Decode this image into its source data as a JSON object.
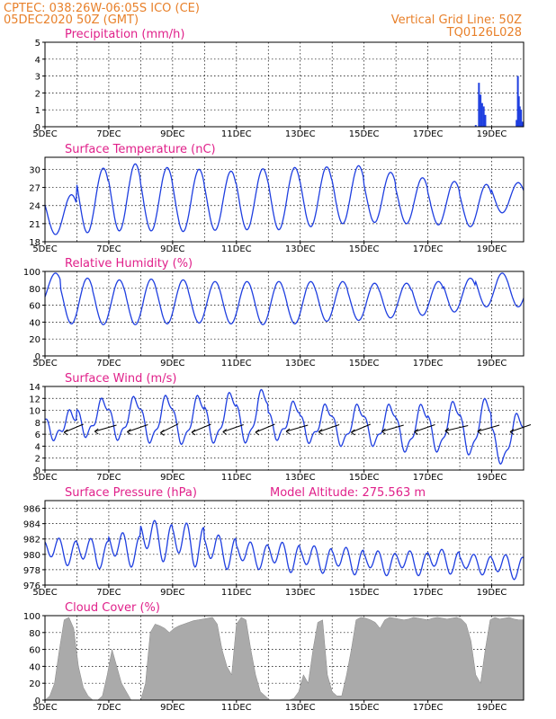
{
  "header": {
    "line1": "CPTEC:   038:26W-06:05S  ICO (CE)",
    "line2": "05DEC2020 50Z (GMT)",
    "right1": "Vertical Grid Line: 50Z",
    "right2": "TQ0126L028"
  },
  "colors": {
    "header": "#e8802a",
    "title": "#e0208a",
    "series": "#1f3fe0",
    "cloud": "#aaaaaa"
  },
  "chart_data": [
    {
      "type": "bar",
      "title": "Precipitation (mm/h)",
      "ylim": [
        0,
        5
      ],
      "yticks": [
        0,
        1,
        2,
        3,
        4,
        5
      ],
      "xlim": [
        5,
        20
      ],
      "xtick_labels": [
        "5DEC",
        "7DEC",
        "9DEC",
        "11DEC",
        "13DEC",
        "15DEC",
        "17DEC",
        "19DEC"
      ],
      "x": [
        5.5,
        8.0,
        10.5,
        13.5,
        16.0,
        18.5,
        18.6,
        18.65,
        18.7,
        18.75,
        18.8,
        19.78,
        19.82,
        19.85,
        19.88,
        19.92,
        19.96
      ],
      "y": [
        0.02,
        0.02,
        0.02,
        0.02,
        0.03,
        0.1,
        2.6,
        1.9,
        1.4,
        1.2,
        0.7,
        0.4,
        3.0,
        1.8,
        1.2,
        1.0,
        0.3
      ]
    },
    {
      "type": "line",
      "title": "Surface Temperature (nC)",
      "ylim": [
        18,
        32
      ],
      "yticks": [
        18,
        21,
        24,
        27,
        30
      ],
      "xlim": [
        5,
        20
      ],
      "xtick_labels": [
        "5DEC",
        "7DEC",
        "9DEC",
        "11DEC",
        "13DEC",
        "15DEC",
        "17DEC",
        "19DEC"
      ],
      "daily": {
        "max": [
          25.8,
          30.2,
          30.9,
          30.3,
          30.0,
          29.7,
          30.1,
          30.3,
          30.4,
          30.6,
          29.5,
          28.6,
          28.0,
          27.5,
          27.8
        ],
        "min": [
          19.2,
          19.5,
          19.8,
          19.8,
          19.7,
          19.9,
          20.0,
          20.0,
          20.5,
          21.0,
          21.2,
          21.0,
          20.8,
          20.5,
          22.8
        ]
      }
    },
    {
      "type": "line",
      "title": "Relative Humidity (%)",
      "ylim": [
        0,
        100
      ],
      "yticks": [
        0,
        20,
        40,
        60,
        80,
        100
      ],
      "xlim": [
        5,
        20
      ],
      "xtick_labels": [
        "5DEC",
        "7DEC",
        "9DEC",
        "11DEC",
        "13DEC",
        "15DEC",
        "17DEC",
        "19DEC"
      ],
      "daily": {
        "max": [
          98,
          92,
          90,
          91,
          90,
          88,
          88,
          88,
          88,
          88,
          86,
          86,
          88,
          92,
          98
        ],
        "min": [
          60,
          38,
          37,
          37,
          38,
          39,
          38,
          37,
          38,
          41,
          42,
          45,
          48,
          52,
          58
        ]
      }
    },
    {
      "type": "line",
      "title": "Surface Wind (m/s)",
      "ylim": [
        0,
        14
      ],
      "yticks": [
        0,
        2,
        4,
        6,
        8,
        10,
        12,
        14
      ],
      "xlim": [
        5,
        20
      ],
      "xtick_labels": [
        "5DEC",
        "7DEC",
        "9DEC",
        "11DEC",
        "13DEC",
        "15DEC",
        "17DEC",
        "19DEC"
      ],
      "daily": {
        "max": [
          9.5,
          11.5,
          11.8,
          12.0,
          12.0,
          12.5,
          13.0,
          11.0,
          10.5,
          10.5,
          10.5,
          10.5,
          11.0,
          11.5,
          9.0
        ],
        "min": [
          5.5,
          6.0,
          5.5,
          5.0,
          4.8,
          5.0,
          5.0,
          5.5,
          5.0,
          4.5,
          4.5,
          3.5,
          3.5,
          3.0,
          1.5
        ]
      },
      "vector_anchor_y": 7,
      "vectors": [
        [
          5.9,
          40
        ],
        [
          6.9,
          30
        ],
        [
          7.9,
          35
        ],
        [
          8.9,
          45
        ],
        [
          9.9,
          40
        ],
        [
          10.9,
          35
        ],
        [
          11.9,
          40
        ],
        [
          12.9,
          30
        ],
        [
          13.9,
          35
        ],
        [
          14.9,
          40
        ],
        [
          15.9,
          30
        ],
        [
          16.9,
          35
        ],
        [
          17.9,
          25
        ],
        [
          18.9,
          30
        ],
        [
          19.9,
          35
        ]
      ]
    },
    {
      "type": "line",
      "title": "Surface Pressure (hPa)",
      "annotation": "Model Altitude: 275.563 m",
      "ylim": [
        976,
        987
      ],
      "yticks": [
        976,
        978,
        980,
        982,
        984,
        986
      ],
      "xlim": [
        5,
        20
      ],
      "xtick_labels": [
        "5DEC",
        "7DEC",
        "9DEC",
        "11DEC",
        "13DEC",
        "15DEC",
        "17DEC",
        "19DEC"
      ],
      "daily": {
        "mean": [
          980.5,
          980.3,
          980.8,
          982.0,
          981.5,
          980.5,
          980.0,
          979.8,
          979.5,
          979.3,
          979.0,
          979.0,
          979.2,
          978.8,
          978.5
        ],
        "amp": [
          2.0,
          2.2,
          2.5,
          3.0,
          3.2,
          2.5,
          2.0,
          2.2,
          2.0,
          2.0,
          1.8,
          1.8,
          1.8,
          1.5,
          1.8
        ]
      }
    },
    {
      "type": "area",
      "title": "Cloud Cover (%)",
      "ylim": [
        0,
        100
      ],
      "yticks": [
        0,
        20,
        40,
        60,
        80,
        100
      ],
      "xlim": [
        5,
        20
      ],
      "xtick_labels": [
        "5DEC",
        "7DEC",
        "9DEC",
        "11DEC",
        "13DEC",
        "15DEC",
        "17DEC",
        "19DEC"
      ],
      "x": [
        5.0,
        5.15,
        5.3,
        5.45,
        5.6,
        5.75,
        5.9,
        6.05,
        6.2,
        6.35,
        6.5,
        6.65,
        6.8,
        6.95,
        7.1,
        7.25,
        7.4,
        7.55,
        7.7,
        7.85,
        8.0,
        8.15,
        8.3,
        8.45,
        8.6,
        8.75,
        8.9,
        9.05,
        9.2,
        9.35,
        9.5,
        9.65,
        9.8,
        9.95,
        10.1,
        10.25,
        10.4,
        10.55,
        10.7,
        10.85,
        11.0,
        11.15,
        11.3,
        11.45,
        11.6,
        11.75,
        11.9,
        12.05,
        12.2,
        12.35,
        12.5,
        12.65,
        12.8,
        12.95,
        13.1,
        13.25,
        13.4,
        13.55,
        13.7,
        13.85,
        14.0,
        14.15,
        14.3,
        14.45,
        14.6,
        14.75,
        14.9,
        15.05,
        15.2,
        15.35,
        15.5,
        15.65,
        15.8,
        15.95,
        16.1,
        16.25,
        16.4,
        16.55,
        16.7,
        16.85,
        17.0,
        17.15,
        17.3,
        17.45,
        17.6,
        17.75,
        17.9,
        18.05,
        18.2,
        18.35,
        18.5,
        18.65,
        18.8,
        18.95,
        19.1,
        19.25,
        19.4,
        19.55,
        19.7,
        19.85,
        20.0
      ],
      "y": [
        0,
        5,
        20,
        60,
        95,
        98,
        85,
        40,
        15,
        5,
        0,
        0,
        5,
        30,
        60,
        40,
        20,
        10,
        0,
        0,
        0,
        20,
        80,
        90,
        88,
        85,
        80,
        85,
        88,
        90,
        92,
        94,
        95,
        96,
        97,
        98,
        90,
        60,
        40,
        30,
        90,
        98,
        95,
        60,
        30,
        10,
        5,
        0,
        0,
        0,
        0,
        0,
        2,
        10,
        30,
        20,
        60,
        92,
        95,
        30,
        10,
        5,
        5,
        30,
        60,
        95,
        98,
        97,
        95,
        92,
        85,
        95,
        98,
        97,
        96,
        95,
        96,
        98,
        97,
        96,
        95,
        97,
        98,
        97,
        96,
        97,
        98,
        96,
        90,
        70,
        30,
        20,
        60,
        95,
        98,
        96,
        97,
        98,
        96,
        95,
        95
      ]
    }
  ]
}
